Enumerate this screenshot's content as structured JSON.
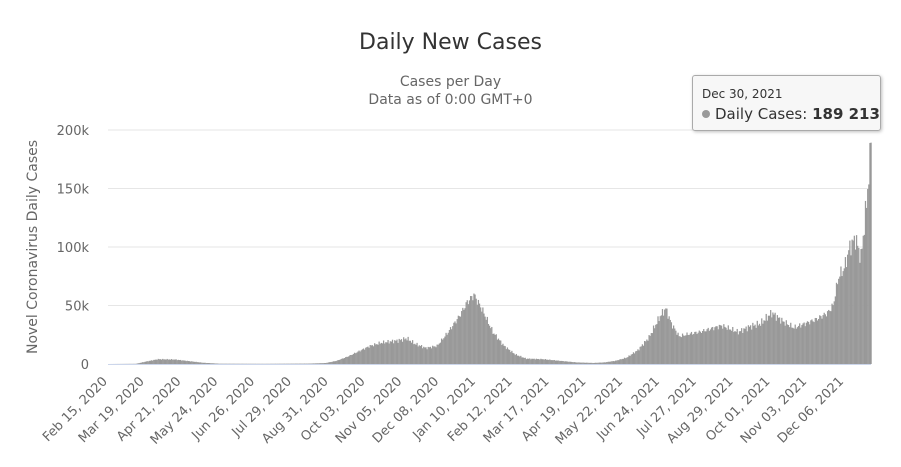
{
  "chart_data": {
    "type": "bar",
    "title": "Daily New Cases",
    "subtitle_lines": [
      "Cases per Day",
      "Data as of 0:00 GMT+0"
    ],
    "ylabel": "Novel Coronavirus Daily Cases",
    "xlabel": "",
    "ylim": [
      0,
      200000
    ],
    "y_ticks": [
      0,
      50000,
      100000,
      150000,
      200000
    ],
    "y_tick_labels": [
      "0",
      "50k",
      "100k",
      "150k",
      "200k"
    ],
    "x_range_days": [
      0,
      684
    ],
    "x_tick_days": [
      0,
      33,
      66,
      99,
      132,
      165,
      198,
      231,
      264,
      297,
      330,
      363,
      396,
      429,
      462,
      495,
      528,
      561,
      594,
      627,
      660
    ],
    "x_tick_labels": [
      "Feb 15, 2020",
      "Mar 19, 2020",
      "Apr 21, 2020",
      "May 24, 2020",
      "Jun 26, 2020",
      "Jul 29, 2020",
      "Aug 31, 2020",
      "Oct 03, 2020",
      "Nov 05, 2020",
      "Dec 08, 2020",
      "Jan 10, 2021",
      "Feb 12, 2021",
      "Mar 17, 2021",
      "Apr 19, 2021",
      "May 22, 2021",
      "Jun 24, 2021",
      "Jul 27, 2021",
      "Aug 29, 2021",
      "Oct 01, 2021",
      "Nov 03, 2021",
      "Dec 06, 2021"
    ],
    "series": [
      {
        "name": "Daily Cases",
        "color": "#999999",
        "start_date": "Feb 15, 2020",
        "interval": "1 day",
        "note": "approximate weekly-averaged values read from the chart",
        "knots": [
          [
            0,
            0
          ],
          [
            25,
            200
          ],
          [
            35,
            2500
          ],
          [
            45,
            4500
          ],
          [
            60,
            4200
          ],
          [
            70,
            3000
          ],
          [
            85,
            1200
          ],
          [
            100,
            300
          ],
          [
            140,
            200
          ],
          [
            180,
            400
          ],
          [
            195,
            900
          ],
          [
            205,
            3000
          ],
          [
            215,
            7000
          ],
          [
            225,
            12000
          ],
          [
            235,
            17000
          ],
          [
            245,
            20000
          ],
          [
            260,
            22000
          ],
          [
            268,
            24000
          ],
          [
            275,
            19000
          ],
          [
            285,
            15000
          ],
          [
            295,
            17000
          ],
          [
            305,
            30000
          ],
          [
            315,
            45000
          ],
          [
            322,
            58000
          ],
          [
            328,
            65000
          ],
          [
            335,
            52000
          ],
          [
            345,
            30000
          ],
          [
            355,
            17000
          ],
          [
            365,
            9000
          ],
          [
            375,
            5000
          ],
          [
            390,
            4500
          ],
          [
            405,
            3000
          ],
          [
            420,
            1500
          ],
          [
            435,
            1000
          ],
          [
            445,
            1500
          ],
          [
            455,
            3000
          ],
          [
            465,
            6000
          ],
          [
            475,
            13000
          ],
          [
            485,
            25000
          ],
          [
            495,
            45000
          ],
          [
            500,
            52000
          ],
          [
            505,
            38000
          ],
          [
            512,
            26000
          ],
          [
            520,
            28000
          ],
          [
            530,
            30000
          ],
          [
            540,
            33000
          ],
          [
            550,
            36000
          ],
          [
            565,
            30000
          ],
          [
            575,
            35000
          ],
          [
            585,
            38000
          ],
          [
            595,
            48000
          ],
          [
            605,
            40000
          ],
          [
            615,
            34000
          ],
          [
            625,
            38000
          ],
          [
            635,
            42000
          ],
          [
            645,
            48000
          ],
          [
            650,
            55000
          ],
          [
            655,
            82000
          ],
          [
            660,
            90000
          ],
          [
            665,
            110000
          ],
          [
            670,
            118000
          ],
          [
            675,
            100000
          ],
          [
            679,
            140000
          ],
          [
            683,
            189213
          ]
        ]
      }
    ],
    "tooltip": {
      "date": "Dec 30, 2021",
      "series_name": "Daily Cases",
      "value": "189 213"
    }
  }
}
